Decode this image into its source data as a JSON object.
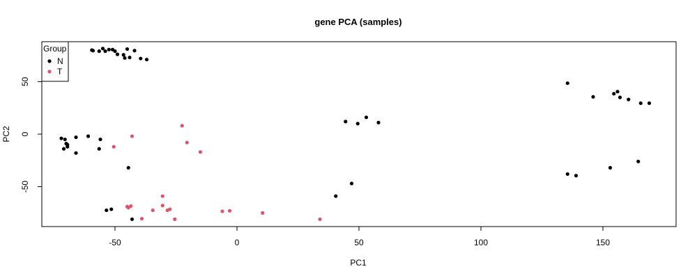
{
  "chart_data": {
    "type": "scatter",
    "title": "gene PCA (samples)",
    "xlabel": "PC1",
    "ylabel": "PC2",
    "xlim": [
      -80,
      180
    ],
    "ylim": [
      -88,
      88
    ],
    "x_ticks": [
      -50,
      0,
      50,
      100,
      150
    ],
    "y_ticks": [
      -50,
      0,
      50
    ],
    "grid": false,
    "legend": {
      "title": "Group",
      "placement": "top-left",
      "entries": [
        {
          "label": "N",
          "color": "#000000"
        },
        {
          "label": "T",
          "color": "#DF536B"
        }
      ]
    },
    "series": [
      {
        "name": "N",
        "color": "#000000",
        "points": [
          [
            -59.5,
            80
          ],
          [
            -59,
            79.5
          ],
          [
            -56.5,
            79
          ],
          [
            -55,
            81.5
          ],
          [
            -54,
            79
          ],
          [
            -52.5,
            80.5
          ],
          [
            -51,
            80.5
          ],
          [
            -50,
            79
          ],
          [
            -49,
            76
          ],
          [
            -46.5,
            75.5
          ],
          [
            -46,
            72.5
          ],
          [
            -45,
            81
          ],
          [
            -44,
            73
          ],
          [
            -42,
            79.5
          ],
          [
            -39.5,
            72
          ],
          [
            -37,
            71
          ],
          [
            -72,
            -4
          ],
          [
            -71,
            -14
          ],
          [
            -70.5,
            -5
          ],
          [
            -70,
            -9
          ],
          [
            -69.5,
            -10
          ],
          [
            -69.5,
            -12
          ],
          [
            -66,
            -3
          ],
          [
            -66,
            -18
          ],
          [
            -61,
            -2
          ],
          [
            -56.5,
            -14
          ],
          [
            -56,
            -5
          ],
          [
            -44.5,
            -32
          ],
          [
            -53.5,
            -72.5
          ],
          [
            -51.5,
            -71.5
          ],
          [
            -43,
            -81
          ],
          [
            40.5,
            -59
          ],
          [
            47,
            -47
          ],
          [
            44.5,
            12
          ],
          [
            49.5,
            10
          ],
          [
            53,
            16
          ],
          [
            58,
            11
          ],
          [
            135.5,
            48.5
          ],
          [
            146,
            35.5
          ],
          [
            154.5,
            38.5
          ],
          [
            156,
            40.5
          ],
          [
            157,
            35
          ],
          [
            160.5,
            33
          ],
          [
            165.5,
            29.5
          ],
          [
            169,
            29.5
          ],
          [
            135.5,
            -38
          ],
          [
            139,
            -39.5
          ],
          [
            153,
            -32
          ],
          [
            164.5,
            -26
          ]
        ]
      },
      {
        "name": "T",
        "color": "#DF536B",
        "points": [
          [
            -50.5,
            -12
          ],
          [
            -43,
            -2
          ],
          [
            -22.5,
            8
          ],
          [
            -20.5,
            -8
          ],
          [
            -15,
            -17
          ],
          [
            -45,
            -69
          ],
          [
            -44.5,
            -70
          ],
          [
            -43.5,
            -68.5
          ],
          [
            -39,
            -80.5
          ],
          [
            -34.5,
            -72.5
          ],
          [
            -30.5,
            -68
          ],
          [
            -30.5,
            -59
          ],
          [
            -28.5,
            -72.5
          ],
          [
            -27.5,
            -71.5
          ],
          [
            -25.5,
            -81
          ],
          [
            -6,
            -73.5
          ],
          [
            -3,
            -73
          ],
          [
            10.5,
            -75
          ],
          [
            34,
            -81
          ]
        ]
      }
    ]
  }
}
